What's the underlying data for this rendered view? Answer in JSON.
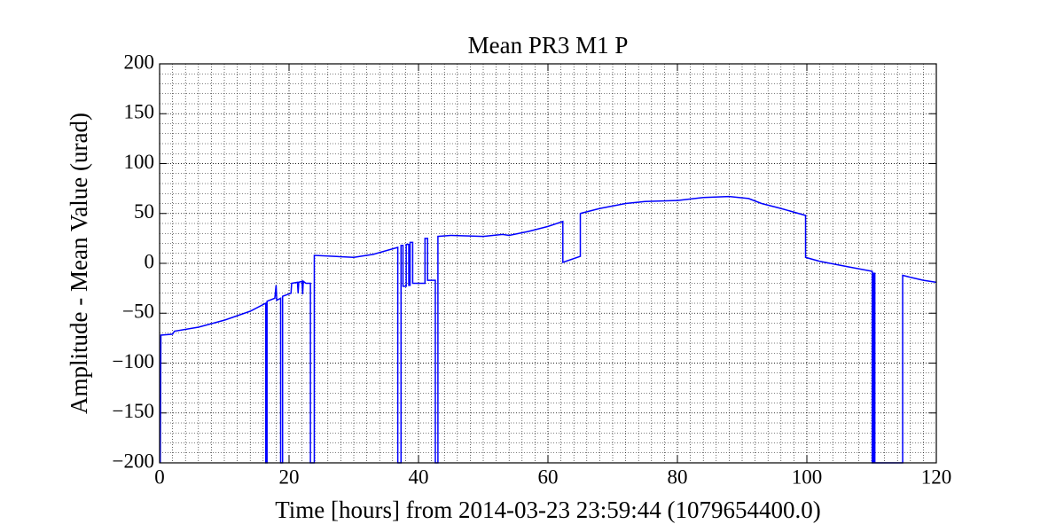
{
  "chart_data": {
    "type": "line",
    "title": "Mean PR3 M1 P",
    "x_label": "Time [hours] from 2014-03-23 23:59:44 (1079654400.0)",
    "y_label": "Amplitude - Mean Value (urad)",
    "xlim": [
      0,
      120
    ],
    "ylim": [
      -200,
      200
    ],
    "xticks": [
      0,
      20,
      40,
      60,
      80,
      100,
      120
    ],
    "yticks": [
      {
        "value": -200,
        "label": "−200"
      },
      {
        "value": -150,
        "label": "−150"
      },
      {
        "value": -100,
        "label": "−100"
      },
      {
        "value": -50,
        "label": "−50"
      },
      0,
      50,
      100,
      150,
      200
    ],
    "x_minor_step": 2,
    "y_minor_step": 10,
    "grid": true,
    "series": [
      {
        "color": "#0000ff",
        "x": [
          0.1,
          0.2,
          2,
          2.3,
          6,
          10,
          14,
          16.4,
          16.4,
          16.6,
          16.6,
          17.8,
          18,
          18.1,
          18.7,
          18.7,
          19,
          19,
          20.3,
          20.4,
          21.3,
          21.4,
          21.5,
          22,
          22.1,
          22.2,
          22.6,
          23.3,
          23.3,
          23.9,
          23.9,
          27,
          30,
          33,
          36.8,
          36.8,
          37.3,
          37.3,
          37.6,
          37.6,
          38.1,
          38.1,
          38.5,
          38.5,
          38.7,
          38.7,
          39.1,
          39.1,
          41,
          41,
          41.4,
          41.4,
          42.6,
          42.6,
          43,
          43,
          45,
          50,
          53,
          54,
          57,
          60,
          62.3,
          62.3,
          65,
          65,
          68,
          72,
          75,
          80,
          84,
          88,
          91,
          93,
          96,
          99.8,
          99.8,
          102,
          106,
          110.1,
          110.1,
          110.3,
          110.3,
          110.5,
          110.5,
          114.8,
          114.8,
          116,
          118,
          120
        ],
        "values": [
          -200,
          -72,
          -71,
          -68,
          -64,
          -57,
          -48,
          -40,
          -200,
          -200,
          -38,
          -35,
          -22,
          -37,
          -35,
          -200,
          -200,
          -33,
          -30,
          -20,
          -19,
          -30,
          -19,
          -18,
          -31,
          -18,
          -20,
          -20,
          -200,
          -200,
          8,
          7,
          6,
          9,
          16,
          -200,
          -200,
          18,
          18,
          -23,
          -23,
          19,
          19,
          -22,
          -22,
          21,
          21,
          -20,
          -20,
          25,
          25,
          -17,
          -17,
          -200,
          -200,
          27,
          28,
          27,
          29,
          28,
          32,
          37,
          42,
          1,
          7,
          50,
          55,
          60,
          62,
          63,
          66,
          67,
          65,
          60,
          55,
          48,
          6,
          2,
          -3,
          -8,
          -200,
          -200,
          -10,
          -10,
          -200,
          -200,
          -12,
          -14,
          -17,
          -19
        ]
      }
    ]
  }
}
